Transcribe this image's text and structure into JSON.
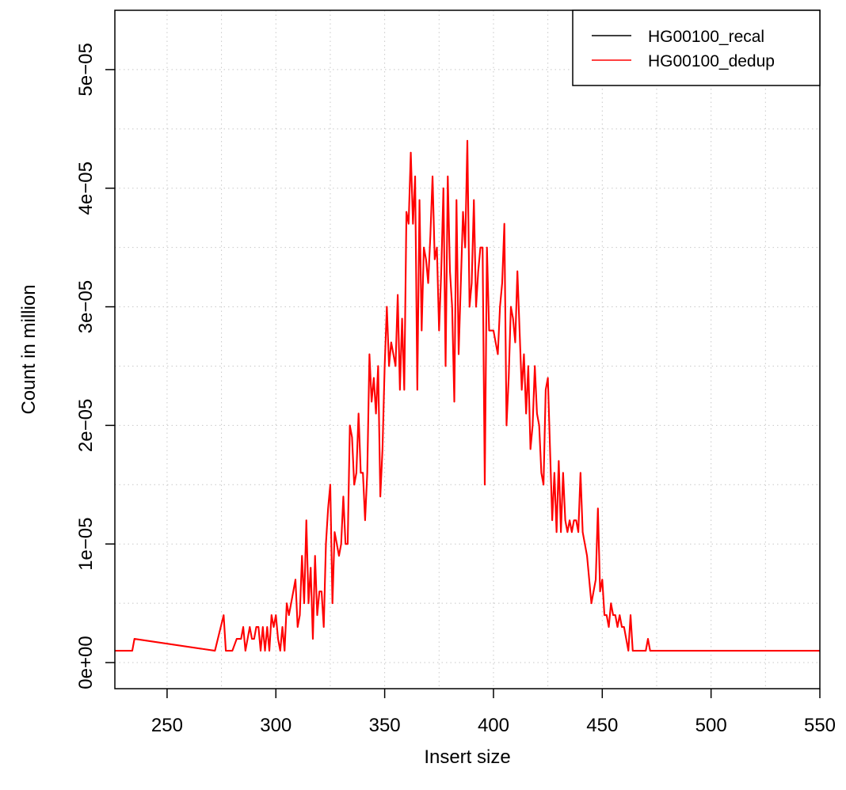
{
  "chart_data": {
    "type": "line",
    "title": "",
    "xlabel": "Insert size",
    "ylabel": "Count in million",
    "xlim": [
      226,
      550
    ],
    "ylim": [
      -2.2e-06,
      5.5e-05
    ],
    "x_ticks": [
      250,
      300,
      350,
      400,
      450,
      500,
      550
    ],
    "x_tick_labels": [
      "250",
      "300",
      "350",
      "400",
      "450",
      "500",
      "550"
    ],
    "y_ticks": [
      0,
      1e-05,
      2e-05,
      3e-05,
      4e-05,
      5e-05
    ],
    "y_tick_labels": [
      "0e+00",
      "1e−05",
      "2e−05",
      "3e−05",
      "4e−05",
      "5e−05"
    ],
    "grid": true,
    "legend_position": "top-right",
    "colors": {
      "recal": "#000000",
      "dedup": "#ff0000"
    },
    "series": [
      {
        "name": "HG00100_recal",
        "color": "#000000",
        "x": [
          226,
          234,
          235,
          272,
          276,
          277,
          280,
          282,
          284,
          285,
          286,
          287,
          288,
          289,
          290,
          291,
          292,
          293,
          294,
          295,
          296,
          297,
          298,
          299,
          300,
          301,
          302,
          303,
          304,
          305,
          306,
          307,
          308,
          309,
          310,
          311,
          312,
          313,
          314,
          315,
          316,
          317,
          318,
          319,
          320,
          321,
          322,
          323,
          324,
          325,
          326,
          327,
          328,
          329,
          330,
          331,
          332,
          333,
          334,
          335,
          336,
          337,
          338,
          339,
          340,
          341,
          342,
          343,
          344,
          345,
          346,
          347,
          348,
          349,
          350,
          351,
          352,
          353,
          354,
          355,
          356,
          357,
          358,
          359,
          360,
          361,
          362,
          363,
          364,
          365,
          366,
          367,
          368,
          369,
          370,
          371,
          372,
          373,
          374,
          375,
          376,
          377,
          378,
          379,
          380,
          381,
          382,
          383,
          384,
          385,
          386,
          387,
          388,
          389,
          390,
          391,
          392,
          393,
          394,
          395,
          396,
          397,
          398,
          399,
          400,
          401,
          402,
          403,
          404,
          405,
          406,
          407,
          408,
          409,
          410,
          411,
          412,
          413,
          414,
          415,
          416,
          417,
          418,
          419,
          420,
          421,
          422,
          423,
          424,
          425,
          426,
          427,
          428,
          429,
          430,
          431,
          432,
          433,
          434,
          435,
          436,
          437,
          438,
          439,
          440,
          441,
          442,
          443,
          444,
          445,
          446,
          447,
          448,
          449,
          450,
          451,
          452,
          453,
          454,
          455,
          456,
          457,
          458,
          459,
          460,
          461,
          462,
          463,
          464,
          470,
          471,
          472,
          550
        ],
        "values": [
          1e-06,
          1e-06,
          2e-06,
          1e-06,
          4e-06,
          1e-06,
          1e-06,
          2e-06,
          2e-06,
          3e-06,
          1e-06,
          2e-06,
          3e-06,
          2e-06,
          2e-06,
          3e-06,
          3e-06,
          1e-06,
          3e-06,
          1e-06,
          3e-06,
          1e-06,
          4e-06,
          3e-06,
          4e-06,
          2e-06,
          1e-06,
          3e-06,
          1e-06,
          5e-06,
          4e-06,
          5e-06,
          6e-06,
          7e-06,
          3e-06,
          4e-06,
          9e-06,
          5e-06,
          1.2e-05,
          5e-06,
          8e-06,
          2e-06,
          9e-06,
          4e-06,
          6e-06,
          6e-06,
          3e-06,
          1e-05,
          1.3e-05,
          1.5e-05,
          5e-06,
          1.1e-05,
          1e-05,
          9e-06,
          1e-05,
          1.4e-05,
          1e-05,
          1e-05,
          2e-05,
          1.9e-05,
          1.5e-05,
          1.6e-05,
          2.1e-05,
          1.6e-05,
          1.6e-05,
          1.2e-05,
          1.6e-05,
          2.6e-05,
          2.2e-05,
          2.4e-05,
          2.1e-05,
          2.5e-05,
          1.4e-05,
          1.8e-05,
          2.5e-05,
          3e-05,
          2.5e-05,
          2.7e-05,
          2.6e-05,
          2.5e-05,
          3.1e-05,
          2.3e-05,
          2.9e-05,
          2.3e-05,
          3.8e-05,
          3.7e-05,
          4.3e-05,
          3.7e-05,
          4.1e-05,
          2.3e-05,
          3.9e-05,
          2.8e-05,
          3.5e-05,
          3.4e-05,
          3.2e-05,
          3.6e-05,
          4.1e-05,
          3.4e-05,
          3.5e-05,
          2.8e-05,
          3.3e-05,
          4e-05,
          2.5e-05,
          4.1e-05,
          3.3e-05,
          3e-05,
          2.2e-05,
          3.9e-05,
          2.6e-05,
          3.2e-05,
          3.8e-05,
          3.5e-05,
          4.4e-05,
          3e-05,
          3.2e-05,
          3.9e-05,
          3e-05,
          3.3e-05,
          3.5e-05,
          3.5e-05,
          1.5e-05,
          3.5e-05,
          2.8e-05,
          2.8e-05,
          2.8e-05,
          2.7e-05,
          2.6e-05,
          3e-05,
          3.2e-05,
          3.7e-05,
          2e-05,
          2.4e-05,
          3e-05,
          2.9e-05,
          2.7e-05,
          3.3e-05,
          2.8e-05,
          2.3e-05,
          2.6e-05,
          2.1e-05,
          2.5e-05,
          1.8e-05,
          2e-05,
          2.5e-05,
          2.1e-05,
          2e-05,
          1.6e-05,
          1.5e-05,
          2.3e-05,
          2.4e-05,
          1.8e-05,
          1.2e-05,
          1.6e-05,
          1.1e-05,
          1.7e-05,
          1.1e-05,
          1.6e-05,
          1.2e-05,
          1.1e-05,
          1.2e-05,
          1.1e-05,
          1.2e-05,
          1.2e-05,
          1.1e-05,
          1.6e-05,
          1.1e-05,
          1e-05,
          9e-06,
          7e-06,
          5e-06,
          6e-06,
          7e-06,
          1.3e-05,
          6e-06,
          7e-06,
          4e-06,
          4e-06,
          3e-06,
          5e-06,
          4e-06,
          4e-06,
          3e-06,
          4e-06,
          3e-06,
          3e-06,
          2e-06,
          1e-06,
          4e-06,
          1e-06,
          1e-06,
          2e-06,
          1e-06,
          1e-06
        ]
      },
      {
        "name": "HG00100_dedup",
        "color": "#ff0000",
        "x": [
          226,
          234,
          235,
          272,
          276,
          277,
          280,
          282,
          284,
          285,
          286,
          287,
          288,
          289,
          290,
          291,
          292,
          293,
          294,
          295,
          296,
          297,
          298,
          299,
          300,
          301,
          302,
          303,
          304,
          305,
          306,
          307,
          308,
          309,
          310,
          311,
          312,
          313,
          314,
          315,
          316,
          317,
          318,
          319,
          320,
          321,
          322,
          323,
          324,
          325,
          326,
          327,
          328,
          329,
          330,
          331,
          332,
          333,
          334,
          335,
          336,
          337,
          338,
          339,
          340,
          341,
          342,
          343,
          344,
          345,
          346,
          347,
          348,
          349,
          350,
          351,
          352,
          353,
          354,
          355,
          356,
          357,
          358,
          359,
          360,
          361,
          362,
          363,
          364,
          365,
          366,
          367,
          368,
          369,
          370,
          371,
          372,
          373,
          374,
          375,
          376,
          377,
          378,
          379,
          380,
          381,
          382,
          383,
          384,
          385,
          386,
          387,
          388,
          389,
          390,
          391,
          392,
          393,
          394,
          395,
          396,
          397,
          398,
          399,
          400,
          401,
          402,
          403,
          404,
          405,
          406,
          407,
          408,
          409,
          410,
          411,
          412,
          413,
          414,
          415,
          416,
          417,
          418,
          419,
          420,
          421,
          422,
          423,
          424,
          425,
          426,
          427,
          428,
          429,
          430,
          431,
          432,
          433,
          434,
          435,
          436,
          437,
          438,
          439,
          440,
          441,
          442,
          443,
          444,
          445,
          446,
          447,
          448,
          449,
          450,
          451,
          452,
          453,
          454,
          455,
          456,
          457,
          458,
          459,
          460,
          461,
          462,
          463,
          464,
          470,
          471,
          472,
          550
        ],
        "values": [
          1e-06,
          1e-06,
          2e-06,
          1e-06,
          4e-06,
          1e-06,
          1e-06,
          2e-06,
          2e-06,
          3e-06,
          1e-06,
          2e-06,
          3e-06,
          2e-06,
          2e-06,
          3e-06,
          3e-06,
          1e-06,
          3e-06,
          1e-06,
          3e-06,
          1e-06,
          4e-06,
          3e-06,
          4e-06,
          2e-06,
          1e-06,
          3e-06,
          1e-06,
          5e-06,
          4e-06,
          5e-06,
          6e-06,
          7e-06,
          3e-06,
          4e-06,
          9e-06,
          5e-06,
          1.2e-05,
          5e-06,
          8e-06,
          2e-06,
          9e-06,
          4e-06,
          6e-06,
          6e-06,
          3e-06,
          1e-05,
          1.3e-05,
          1.5e-05,
          5e-06,
          1.1e-05,
          1e-05,
          9e-06,
          1e-05,
          1.4e-05,
          1e-05,
          1e-05,
          2e-05,
          1.9e-05,
          1.5e-05,
          1.6e-05,
          2.1e-05,
          1.6e-05,
          1.6e-05,
          1.2e-05,
          1.6e-05,
          2.6e-05,
          2.2e-05,
          2.4e-05,
          2.1e-05,
          2.5e-05,
          1.4e-05,
          1.8e-05,
          2.5e-05,
          3e-05,
          2.5e-05,
          2.7e-05,
          2.6e-05,
          2.5e-05,
          3.1e-05,
          2.3e-05,
          2.9e-05,
          2.3e-05,
          3.8e-05,
          3.7e-05,
          4.3e-05,
          3.7e-05,
          4.1e-05,
          2.3e-05,
          3.9e-05,
          2.8e-05,
          3.5e-05,
          3.4e-05,
          3.2e-05,
          3.6e-05,
          4.1e-05,
          3.4e-05,
          3.5e-05,
          2.8e-05,
          3.3e-05,
          4e-05,
          2.5e-05,
          4.1e-05,
          3.3e-05,
          3e-05,
          2.2e-05,
          3.9e-05,
          2.6e-05,
          3.2e-05,
          3.8e-05,
          3.5e-05,
          4.4e-05,
          3e-05,
          3.2e-05,
          3.9e-05,
          3e-05,
          3.3e-05,
          3.5e-05,
          3.5e-05,
          1.5e-05,
          3.5e-05,
          2.8e-05,
          2.8e-05,
          2.8e-05,
          2.7e-05,
          2.6e-05,
          3e-05,
          3.2e-05,
          3.7e-05,
          2e-05,
          2.4e-05,
          3e-05,
          2.9e-05,
          2.7e-05,
          3.3e-05,
          2.8e-05,
          2.3e-05,
          2.6e-05,
          2.1e-05,
          2.5e-05,
          1.8e-05,
          2e-05,
          2.5e-05,
          2.1e-05,
          2e-05,
          1.6e-05,
          1.5e-05,
          2.3e-05,
          2.4e-05,
          1.8e-05,
          1.2e-05,
          1.6e-05,
          1.1e-05,
          1.7e-05,
          1.1e-05,
          1.6e-05,
          1.2e-05,
          1.1e-05,
          1.2e-05,
          1.1e-05,
          1.2e-05,
          1.2e-05,
          1.1e-05,
          1.6e-05,
          1.1e-05,
          1e-05,
          9e-06,
          7e-06,
          5e-06,
          6e-06,
          7e-06,
          1.3e-05,
          6e-06,
          7e-06,
          4e-06,
          4e-06,
          3e-06,
          5e-06,
          4e-06,
          4e-06,
          3e-06,
          4e-06,
          3e-06,
          3e-06,
          2e-06,
          1e-06,
          4e-06,
          1e-06,
          1e-06,
          2e-06,
          1e-06,
          1e-06
        ]
      }
    ]
  }
}
